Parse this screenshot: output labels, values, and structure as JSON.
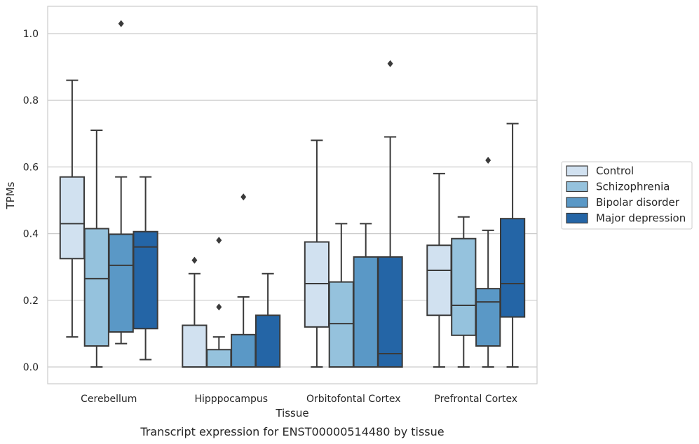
{
  "caption": "Transcript expression for ENST00000514480 by tissue",
  "chart_data": {
    "type": "boxplot",
    "xlabel": "Tissue",
    "ylabel": "TPMs",
    "ylim": [
      -0.05,
      1.08
    ],
    "yticks": [
      "0.0",
      "0.2",
      "0.4",
      "0.6",
      "0.8",
      "1.0"
    ],
    "grid": true,
    "legend_position": "right",
    "categories": [
      "Cerebellum",
      "Hipppocampus",
      "Orbitofontal Cortex",
      "Prefrontal Cortex"
    ],
    "series": [
      {
        "name": "Control",
        "color": "#d1e1f0",
        "boxes": [
          {
            "min": 0.09,
            "q1": 0.325,
            "median": 0.43,
            "q3": 0.57,
            "max": 0.86,
            "outliers": []
          },
          {
            "min": 0.0,
            "q1": 0.0,
            "median": 0.0,
            "q3": 0.125,
            "max": 0.28,
            "outliers": [
              0.32
            ]
          },
          {
            "min": 0.0,
            "q1": 0.12,
            "median": 0.25,
            "q3": 0.375,
            "max": 0.68,
            "outliers": []
          },
          {
            "min": 0.0,
            "q1": 0.155,
            "median": 0.29,
            "q3": 0.365,
            "max": 0.58,
            "outliers": []
          }
        ]
      },
      {
        "name": "Schizophrenia",
        "color": "#95c2dd",
        "boxes": [
          {
            "min": 0.0,
            "q1": 0.063,
            "median": 0.265,
            "q3": 0.415,
            "max": 0.71,
            "outliers": []
          },
          {
            "min": 0.0,
            "q1": 0.0,
            "median": 0.0,
            "q3": 0.052,
            "max": 0.09,
            "outliers": [
              0.18,
              0.38
            ]
          },
          {
            "min": 0.0,
            "q1": 0.0,
            "median": 0.13,
            "q3": 0.255,
            "max": 0.43,
            "outliers": []
          },
          {
            "min": 0.0,
            "q1": 0.095,
            "median": 0.185,
            "q3": 0.385,
            "max": 0.45,
            "outliers": []
          }
        ]
      },
      {
        "name": "Bipolar disorder",
        "color": "#5a98c6",
        "boxes": [
          {
            "min": 0.07,
            "q1": 0.105,
            "median": 0.305,
            "q3": 0.398,
            "max": 0.57,
            "outliers": [
              1.03
            ]
          },
          {
            "min": 0.0,
            "q1": 0.0,
            "median": 0.0,
            "q3": 0.097,
            "max": 0.21,
            "outliers": [
              0.51
            ]
          },
          {
            "min": 0.0,
            "q1": 0.0,
            "median": 0.0,
            "q3": 0.33,
            "max": 0.43,
            "outliers": []
          },
          {
            "min": 0.0,
            "q1": 0.063,
            "median": 0.195,
            "q3": 0.235,
            "max": 0.41,
            "outliers": [
              0.62
            ]
          }
        ]
      },
      {
        "name": "Major depression",
        "color": "#2465a6",
        "boxes": [
          {
            "min": 0.022,
            "q1": 0.115,
            "median": 0.36,
            "q3": 0.406,
            "max": 0.57,
            "outliers": []
          },
          {
            "min": 0.0,
            "q1": 0.0,
            "median": 0.0,
            "q3": 0.155,
            "max": 0.28,
            "outliers": []
          },
          {
            "min": 0.0,
            "q1": 0.0,
            "median": 0.04,
            "q3": 0.33,
            "max": 0.69,
            "outliers": [
              0.91
            ]
          },
          {
            "min": 0.0,
            "q1": 0.15,
            "median": 0.25,
            "q3": 0.445,
            "max": 0.73,
            "outliers": []
          }
        ]
      }
    ]
  }
}
